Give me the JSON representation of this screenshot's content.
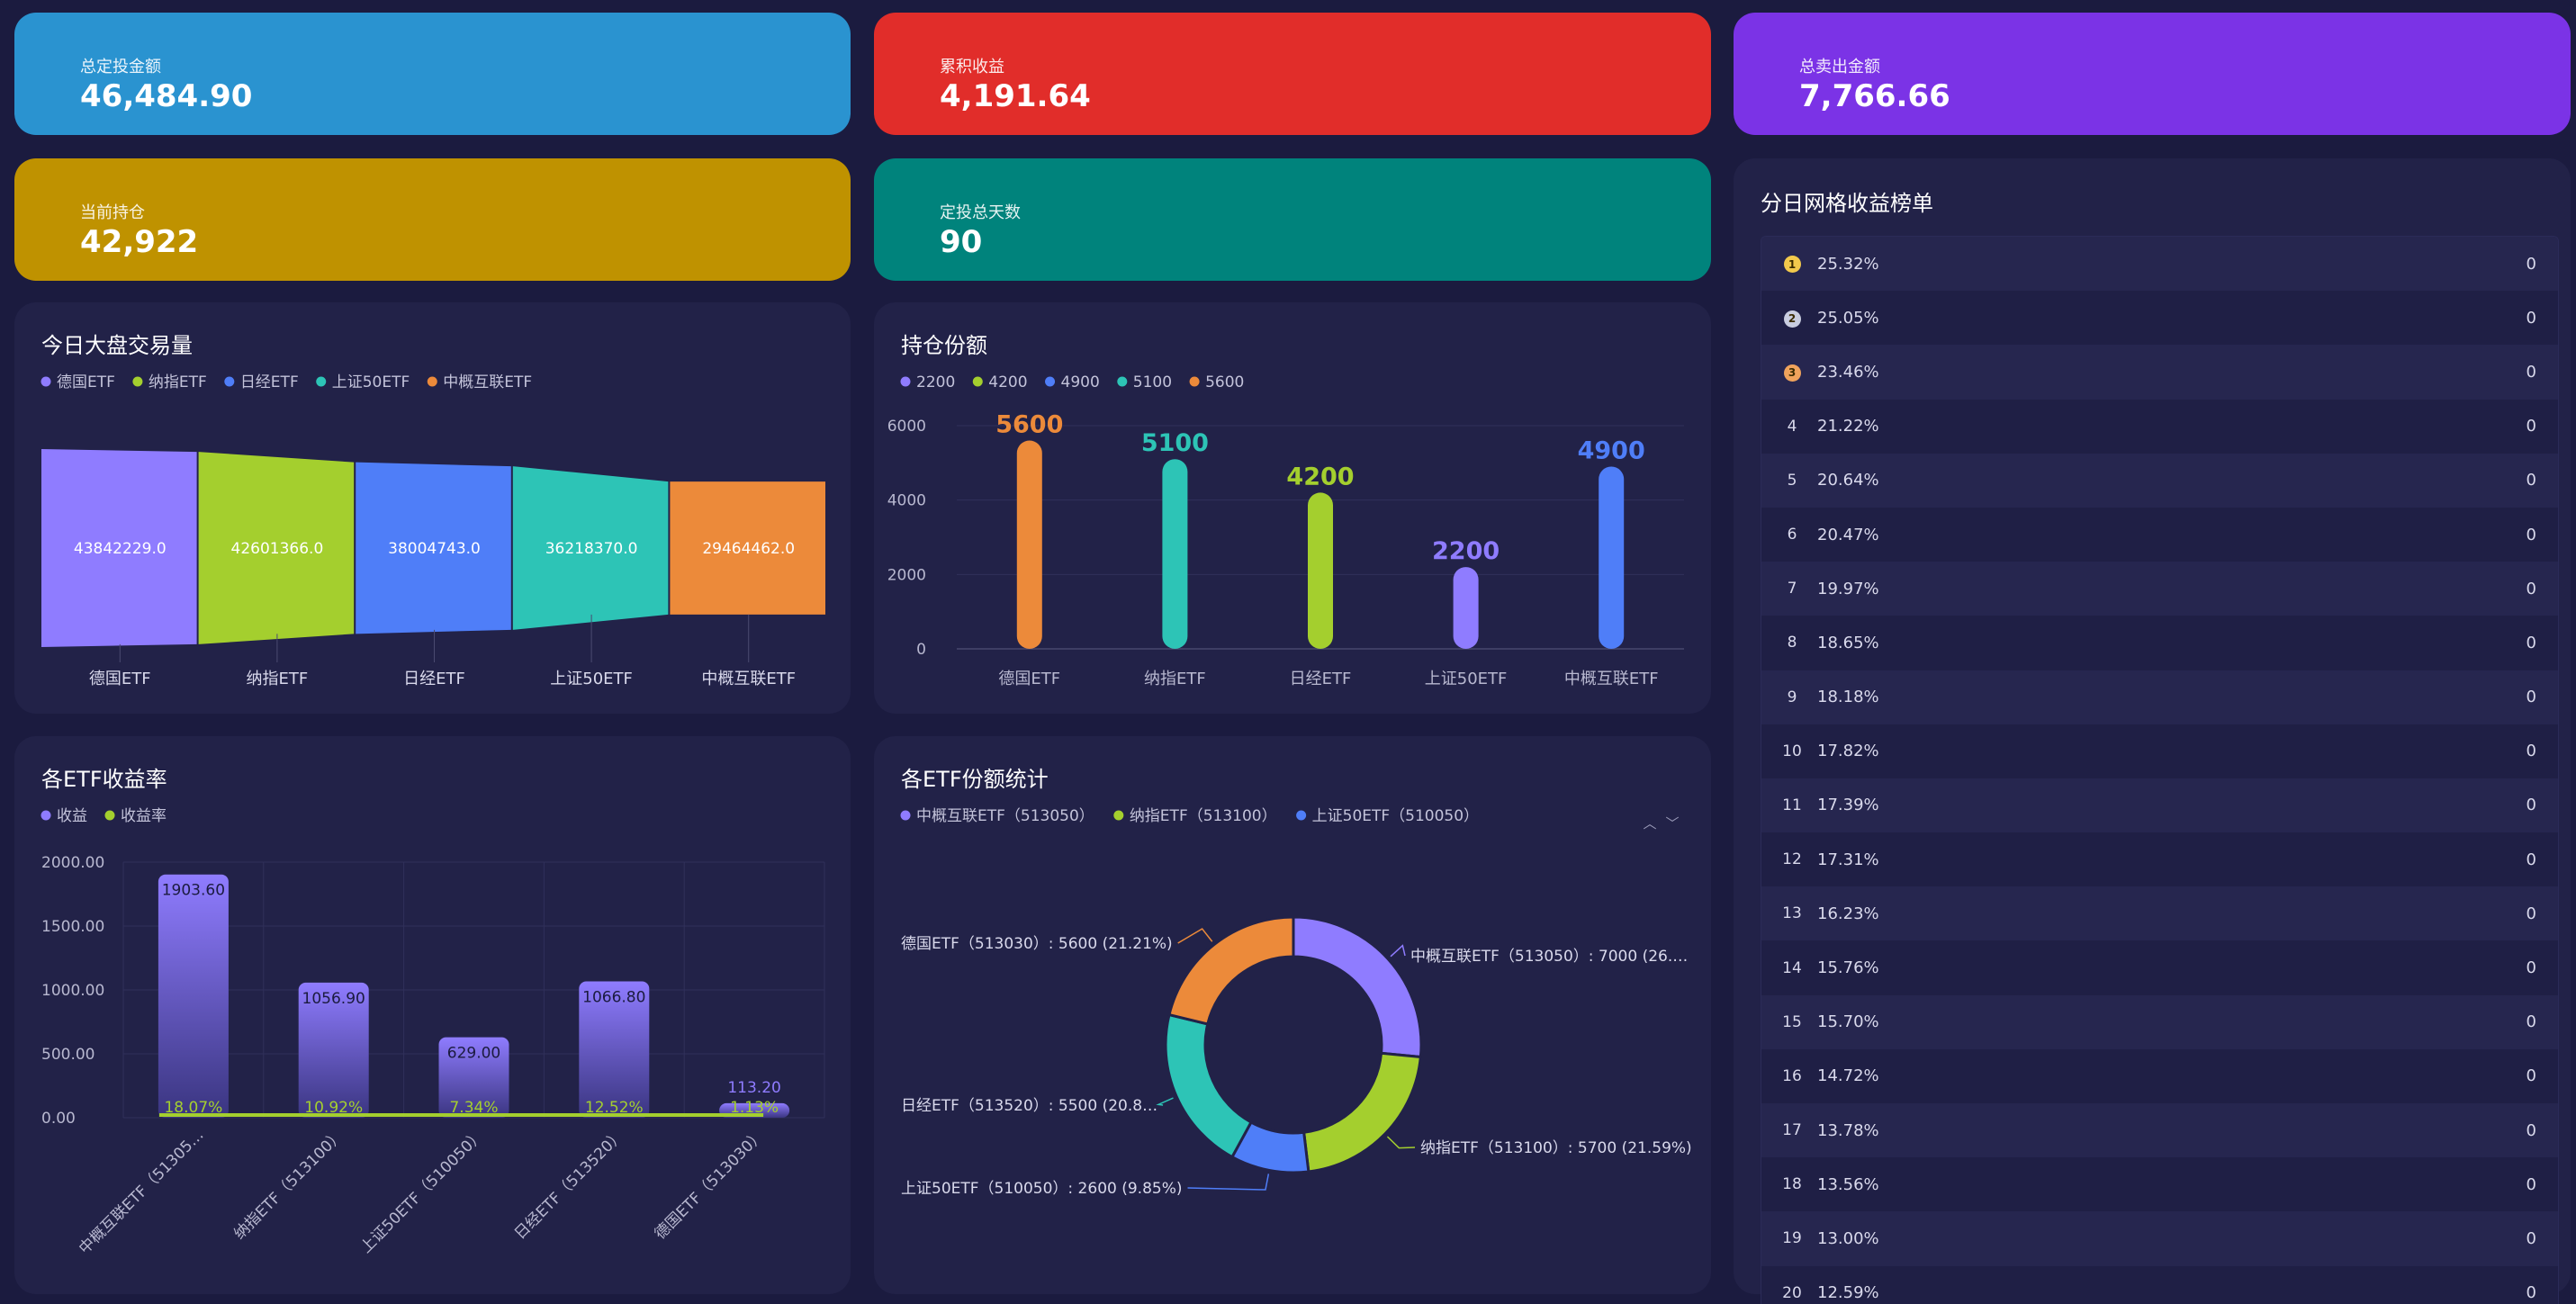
{
  "stats": {
    "total_invest": {
      "label": "总定投金额",
      "value": "46,484.90",
      "color": "#2a93d0"
    },
    "cumulative_return": {
      "label": "累积收益",
      "value": "4,191.64",
      "color": "#e12d2a"
    },
    "total_sold": {
      "label": "总卖出金额",
      "value": "7,766.66",
      "color": "#7b33e6"
    },
    "current_holding": {
      "label": "当前持仓",
      "value": "42,922",
      "color": "#bf9200"
    },
    "invest_days": {
      "label": "定投总天数",
      "value": "90",
      "color": "#00837c"
    }
  },
  "volume": {
    "title": "今日大盘交易量",
    "legend": [
      "德国ETF",
      "纳指ETF",
      "日经ETF",
      "上证50ETF",
      "中概互联ETF"
    ],
    "colors": [
      "#8f7cff",
      "#a4cf2e",
      "#4f7ef8",
      "#2dc4b6",
      "#ec8a3a"
    ]
  },
  "holdings": {
    "title": "持仓份额",
    "legend": [
      "2200",
      "4200",
      "4900",
      "5100",
      "5600"
    ],
    "legend_colors": [
      "#8f7cff",
      "#a4cf2e",
      "#4f7ef8",
      "#2dc4b6",
      "#ec8a3a"
    ],
    "bar_colors": [
      "#ec8a3a",
      "#2dc4b6",
      "#a4cf2e",
      "#8f7cff",
      "#4f7ef8"
    ]
  },
  "returns": {
    "title": "各ETF收益率",
    "legend": [
      "收益",
      "收益率"
    ],
    "legend_colors": [
      "#8f7cff",
      "#a4cf2e"
    ]
  },
  "shares": {
    "title": "各ETF份额统计",
    "legend": [
      "中概互联ETF（513050）",
      "纳指ETF（513100）",
      "上证50ETF（510050）"
    ],
    "legend_colors": [
      "#8f7cff",
      "#a4cf2e",
      "#4f7ef8"
    ],
    "arrow_up": "︿",
    "arrow_down": "﹀"
  },
  "ranking": {
    "title": "分日网格收益榜单",
    "medal_colors": [
      "#f2c94c",
      "#c9cde0",
      "#f0a35c"
    ],
    "rows": [
      {
        "rank": "1",
        "pct": "25.32%",
        "value": "0"
      },
      {
        "rank": "2",
        "pct": "25.05%",
        "value": "0"
      },
      {
        "rank": "3",
        "pct": "23.46%",
        "value": "0"
      },
      {
        "rank": "4",
        "pct": "21.22%",
        "value": "0"
      },
      {
        "rank": "5",
        "pct": "20.64%",
        "value": "0"
      },
      {
        "rank": "6",
        "pct": "20.47%",
        "value": "0"
      },
      {
        "rank": "7",
        "pct": "19.97%",
        "value": "0"
      },
      {
        "rank": "8",
        "pct": "18.65%",
        "value": "0"
      },
      {
        "rank": "9",
        "pct": "18.18%",
        "value": "0"
      },
      {
        "rank": "10",
        "pct": "17.82%",
        "value": "0"
      },
      {
        "rank": "11",
        "pct": "17.39%",
        "value": "0"
      },
      {
        "rank": "12",
        "pct": "17.31%",
        "value": "0"
      },
      {
        "rank": "13",
        "pct": "16.23%",
        "value": "0"
      },
      {
        "rank": "14",
        "pct": "15.76%",
        "value": "0"
      },
      {
        "rank": "15",
        "pct": "15.70%",
        "value": "0"
      },
      {
        "rank": "16",
        "pct": "14.72%",
        "value": "0"
      },
      {
        "rank": "17",
        "pct": "13.78%",
        "value": "0"
      },
      {
        "rank": "18",
        "pct": "13.56%",
        "value": "0"
      },
      {
        "rank": "19",
        "pct": "13.00%",
        "value": "0"
      },
      {
        "rank": "20",
        "pct": "12.59%",
        "value": "0"
      }
    ]
  },
  "chart_data": [
    {
      "type": "funnel",
      "title": "今日大盘交易量",
      "categories": [
        "德国ETF",
        "纳指ETF",
        "日经ETF",
        "上证50ETF",
        "中概互联ETF"
      ],
      "values": [
        43842229.0,
        42601366.0,
        38004743.0,
        36218370.0,
        29464462.0
      ],
      "labels": [
        "43842229.0",
        "42601366.0",
        "38004743.0",
        "36218370.0",
        "29464462.0"
      ]
    },
    {
      "type": "bar",
      "title": "持仓份额",
      "categories": [
        "德国ETF",
        "纳指ETF",
        "日经ETF",
        "上证50ETF",
        "中概互联ETF"
      ],
      "values": [
        5600,
        5100,
        4200,
        2200,
        4900
      ],
      "ylim": [
        0,
        6000
      ],
      "yticks": [
        "0",
        "2000",
        "4000",
        "6000"
      ]
    },
    {
      "type": "bar",
      "title": "各ETF收益率",
      "categories": [
        "中概互联ETF（51305…",
        "纳指ETF（513100）",
        "上证50ETF（510050）",
        "日经ETF（513520）",
        "德国ETF（513030）"
      ],
      "series": [
        {
          "name": "收益",
          "values": [
            1903.6,
            1056.9,
            629.0,
            1066.8,
            113.2
          ],
          "labels": [
            "1903.60",
            "1056.90",
            "629.00",
            "1066.80",
            "113.20"
          ]
        },
        {
          "name": "收益率",
          "values": [
            18.07,
            10.92,
            7.34,
            12.52,
            1.13
          ],
          "labels": [
            "18.07%",
            "10.92%",
            "7.34%",
            "12.52%",
            "1.13%"
          ]
        }
      ],
      "ylim": [
        0,
        2000
      ],
      "yticks": [
        "0.00",
        "500.00",
        "1000.00",
        "1500.00",
        "2000.00"
      ]
    },
    {
      "type": "pie",
      "title": "各ETF份额统计",
      "slices": [
        {
          "name": "中概互联ETF（513050）",
          "value": 7000,
          "label": "中概互联ETF（513050）: 7000 (26.…",
          "color": "#8f7cff"
        },
        {
          "name": "纳指ETF（513100）",
          "value": 5700,
          "label": "纳指ETF（513100）: 5700 (21.59%)",
          "color": "#a4cf2e"
        },
        {
          "name": "上证50ETF（510050）",
          "value": 2600,
          "label": "上证50ETF（510050）: 2600 (9.85%)",
          "color": "#4f7ef8"
        },
        {
          "name": "日经ETF（513520）",
          "value": 5500,
          "label": "日经ETF（513520）: 5500 (20.8…",
          "color": "#2dc4b6"
        },
        {
          "name": "德国ETF（513030）",
          "value": 5600,
          "label": "德国ETF（513030）: 5600 (21.21%)",
          "color": "#ec8a3a"
        }
      ]
    }
  ]
}
